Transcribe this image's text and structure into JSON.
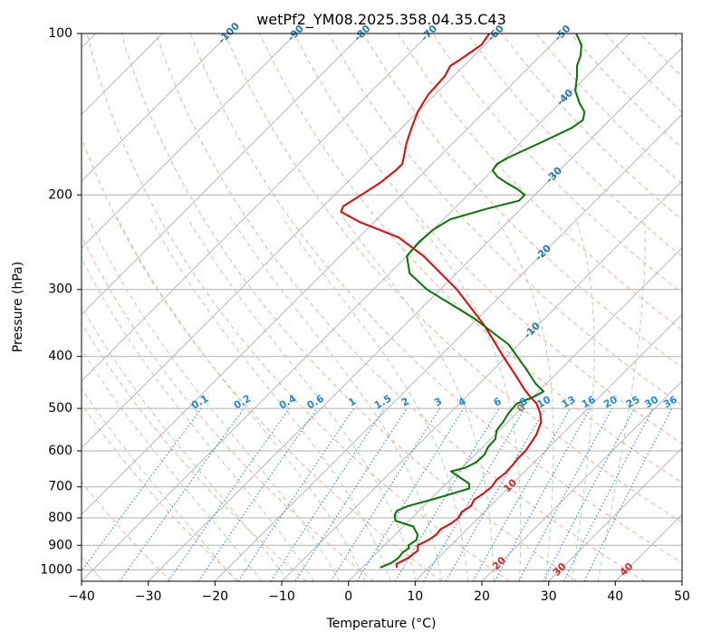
{
  "chart_data": {
    "type": "line",
    "title": "wetPf2_YM08.2025.358.04.35.C43",
    "xlabel": "Temperature (°C)",
    "ylabel": "Pressure (hPa)",
    "xlim": [
      -40,
      50
    ],
    "ylim": [
      1050,
      100
    ],
    "y_scale": "log",
    "grid": true,
    "x_ticks": [
      "−40",
      "−30",
      "−20",
      "−10",
      "0",
      "10",
      "20",
      "30",
      "40",
      "50"
    ],
    "y_ticks": [
      "100",
      "200",
      "300",
      "400",
      "500",
      "600",
      "700",
      "800",
      "900",
      "1000"
    ],
    "skew": 45,
    "colors": {
      "temperature": "#ee0000",
      "dewpoint": "#007700",
      "isotherm_label": "#1f77b4",
      "mixing_ratio": "#1e88e5",
      "dry_adiabat": "#f4a582",
      "moist_adiabat": "#a6d8a6",
      "hot_label": "#d62728",
      "zero_label": "#808080",
      "isotherm_line": "#b0b0b0",
      "decor_line": "#d2b48c"
    },
    "isotherm_labels": [
      {
        "t": -100,
        "text": "-100"
      },
      {
        "t": -90,
        "text": "-90"
      },
      {
        "t": -80,
        "text": "-80"
      },
      {
        "t": -70,
        "text": "-70"
      },
      {
        "t": -60,
        "text": "-60"
      },
      {
        "t": -50,
        "text": "-50"
      },
      {
        "t": -40,
        "text": "-40"
      },
      {
        "t": -30,
        "text": "-30"
      },
      {
        "t": -20,
        "text": "-20"
      },
      {
        "t": -10,
        "text": "-10"
      },
      {
        "t": 0,
        "text": "0"
      },
      {
        "t": 10,
        "text": "10"
      },
      {
        "t": 20,
        "text": "20"
      },
      {
        "t": 30,
        "text": "30"
      },
      {
        "t": 40,
        "text": "40"
      }
    ],
    "mixing_ratios": [
      {
        "w": 0.1,
        "text": "0.1"
      },
      {
        "w": 0.2,
        "text": "0.2"
      },
      {
        "w": 0.4,
        "text": "0.4"
      },
      {
        "w": 0.6,
        "text": "0.6"
      },
      {
        "w": 1,
        "text": "1"
      },
      {
        "w": 1.5,
        "text": "1.5"
      },
      {
        "w": 2,
        "text": "2"
      },
      {
        "w": 3,
        "text": "3"
      },
      {
        "w": 4,
        "text": "4"
      },
      {
        "w": 6,
        "text": "6"
      },
      {
        "w": 8,
        "text": "8"
      },
      {
        "w": 10,
        "text": "10"
      },
      {
        "w": 13,
        "text": "13"
      },
      {
        "w": 16,
        "text": "16"
      },
      {
        "w": 20,
        "text": "20"
      },
      {
        "w": 25,
        "text": "25"
      },
      {
        "w": 30,
        "text": "30"
      },
      {
        "w": 36,
        "text": "36"
      }
    ],
    "series": [
      {
        "key": "temperature",
        "points": [
          {
            "p": 990,
            "t": 5.2
          },
          {
            "p": 975,
            "t": 4.6
          },
          {
            "p": 950,
            "t": 5.5
          },
          {
            "p": 920,
            "t": 5.8
          },
          {
            "p": 900,
            "t": 5.0
          },
          {
            "p": 880,
            "t": 5.8
          },
          {
            "p": 860,
            "t": 6.2
          },
          {
            "p": 840,
            "t": 6.0
          },
          {
            "p": 820,
            "t": 6.7
          },
          {
            "p": 800,
            "t": 7.0
          },
          {
            "p": 780,
            "t": 6.6
          },
          {
            "p": 760,
            "t": 7.1
          },
          {
            "p": 740,
            "t": 6.6
          },
          {
            "p": 720,
            "t": 7.1
          },
          {
            "p": 700,
            "t": 7.3
          },
          {
            "p": 680,
            "t": 7.0
          },
          {
            "p": 660,
            "t": 7.3
          },
          {
            "p": 640,
            "t": 7.2
          },
          {
            "p": 620,
            "t": 7.0
          },
          {
            "p": 600,
            "t": 7.0
          },
          {
            "p": 560,
            "t": 6.2
          },
          {
            "p": 530,
            "t": 5.0
          },
          {
            "p": 510,
            "t": 3.5
          },
          {
            "p": 490,
            "t": 1.6
          },
          {
            "p": 475,
            "t": -0.5
          },
          {
            "p": 460,
            "t": -2.5
          },
          {
            "p": 440,
            "t": -5.0
          },
          {
            "p": 400,
            "t": -10.5
          },
          {
            "p": 350,
            "t": -18.0
          },
          {
            "p": 300,
            "t": -27.5
          },
          {
            "p": 260,
            "t": -37.5
          },
          {
            "p": 240,
            "t": -44.0
          },
          {
            "p": 225,
            "t": -52.0
          },
          {
            "p": 215,
            "t": -56.5
          },
          {
            "p": 210,
            "t": -57.0
          },
          {
            "p": 200,
            "t": -56.0
          },
          {
            "p": 190,
            "t": -55.0
          },
          {
            "p": 180,
            "t": -54.5
          },
          {
            "p": 175,
            "t": -54.5
          },
          {
            "p": 170,
            "t": -55.3
          },
          {
            "p": 160,
            "t": -57.0
          },
          {
            "p": 150,
            "t": -58.5
          },
          {
            "p": 140,
            "t": -60.0
          },
          {
            "p": 130,
            "t": -61.0
          },
          {
            "p": 120,
            "t": -61.3
          },
          {
            "p": 115,
            "t": -62.0
          },
          {
            "p": 110,
            "t": -61.2
          },
          {
            "p": 105,
            "t": -60.5
          },
          {
            "p": 100,
            "t": -61.0
          }
        ]
      },
      {
        "key": "dewpoint",
        "points": [
          {
            "p": 990,
            "t": 2.7
          },
          {
            "p": 970,
            "t": 3.7
          },
          {
            "p": 950,
            "t": 4.0
          },
          {
            "p": 930,
            "t": 3.8
          },
          {
            "p": 910,
            "t": 4.1
          },
          {
            "p": 900,
            "t": 3.6
          },
          {
            "p": 880,
            "t": 4.0
          },
          {
            "p": 860,
            "t": 3.4
          },
          {
            "p": 830,
            "t": 1.5
          },
          {
            "p": 810,
            "t": -2.0
          },
          {
            "p": 790,
            "t": -3.0
          },
          {
            "p": 775,
            "t": -3.3
          },
          {
            "p": 760,
            "t": -2.3
          },
          {
            "p": 740,
            "t": 0.2
          },
          {
            "p": 720,
            "t": 2.5
          },
          {
            "p": 705,
            "t": 4.2
          },
          {
            "p": 690,
            "t": 3.4
          },
          {
            "p": 670,
            "t": 0.8
          },
          {
            "p": 655,
            "t": -1.1
          },
          {
            "p": 645,
            "t": 0.5
          },
          {
            "p": 630,
            "t": 1.3
          },
          {
            "p": 610,
            "t": 1.4
          },
          {
            "p": 590,
            "t": 0.8
          },
          {
            "p": 570,
            "t": 0.7
          },
          {
            "p": 550,
            "t": -0.4
          },
          {
            "p": 530,
            "t": -0.7
          },
          {
            "p": 510,
            "t": -1.2
          },
          {
            "p": 490,
            "t": -1.4
          },
          {
            "p": 475,
            "t": 0.2
          },
          {
            "p": 465,
            "t": 0.8
          },
          {
            "p": 450,
            "t": -1.5
          },
          {
            "p": 420,
            "t": -5.5
          },
          {
            "p": 380,
            "t": -11.5
          },
          {
            "p": 340,
            "t": -20.5
          },
          {
            "p": 300,
            "t": -32.0
          },
          {
            "p": 280,
            "t": -37.0
          },
          {
            "p": 260,
            "t": -40.0
          },
          {
            "p": 245,
            "t": -40.3
          },
          {
            "p": 232,
            "t": -40.0
          },
          {
            "p": 222,
            "t": -39.0
          },
          {
            "p": 212,
            "t": -35.0
          },
          {
            "p": 205,
            "t": -31.5
          },
          {
            "p": 200,
            "t": -31.5
          },
          {
            "p": 195,
            "t": -33.5
          },
          {
            "p": 190,
            "t": -36.0
          },
          {
            "p": 185,
            "t": -38.3
          },
          {
            "p": 180,
            "t": -40.0
          },
          {
            "p": 175,
            "t": -40.3
          },
          {
            "p": 170,
            "t": -39.5
          },
          {
            "p": 160,
            "t": -37.0
          },
          {
            "p": 150,
            "t": -34.5
          },
          {
            "p": 145,
            "t": -34.0
          },
          {
            "p": 140,
            "t": -35.0
          },
          {
            "p": 135,
            "t": -37.0
          },
          {
            "p": 128,
            "t": -39.5
          },
          {
            "p": 120,
            "t": -41.5
          },
          {
            "p": 115,
            "t": -43.0
          },
          {
            "p": 110,
            "t": -44.0
          },
          {
            "p": 105,
            "t": -45.5
          },
          {
            "p": 100,
            "t": -48.0
          }
        ]
      }
    ]
  }
}
